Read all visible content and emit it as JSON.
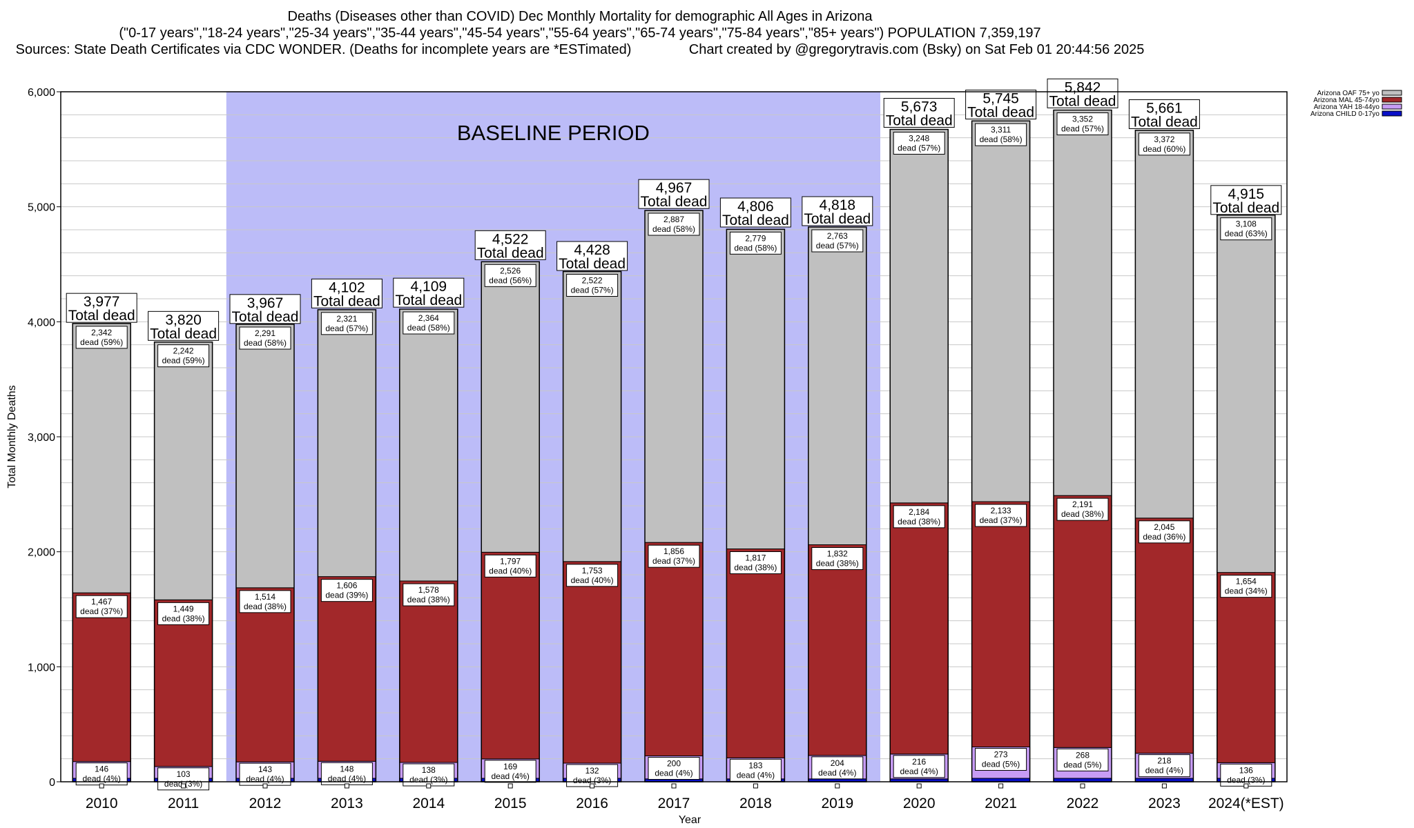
{
  "title": {
    "line1": "Deaths (Diseases other than COVID) Dec Monthly Mortality for demographic All Ages in Arizona",
    "line2": "(\"0-17 years\",\"18-24 years\",\"25-34 years\",\"35-44 years\",\"45-54 years\",\"55-64 years\",\"65-74 years\",\"75-84 years\",\"85+ years\") POPULATION 7,359,197",
    "line3": "Sources: State Death Certificates via CDC WONDER. (Deaths for incomplete years are *ESTimated)               Chart created by @gregorytravis.com (Bsky) on Sat Feb 01 20:44:56 2025"
  },
  "colors": {
    "child": "#0a10c8",
    "yah": "#c79cf5",
    "mal": "#a2282a",
    "oaf": "#c0c0c0",
    "baseline": "#bcbcf8",
    "grid": "#c8c8c8"
  },
  "chart_data": {
    "type": "bar",
    "stacked": true,
    "categories": [
      "2010",
      "2011",
      "2012",
      "2013",
      "2014",
      "2015",
      "2016",
      "2017",
      "2018",
      "2019",
      "2020",
      "2021",
      "2022",
      "2023",
      "2024(*EST)"
    ],
    "series": [
      {
        "name": "Arizona CHILD 0-17yo",
        "key": "child",
        "values": [
          30,
          30,
          30,
          30,
          30,
          30,
          30,
          25,
          25,
          25,
          25,
          30,
          30,
          30,
          30
        ]
      },
      {
        "name": "Arizona YAH 18-44yo",
        "key": "yah",
        "values": [
          146,
          103,
          143,
          148,
          138,
          169,
          132,
          200,
          183,
          204,
          216,
          273,
          268,
          218,
          136
        ],
        "labels": [
          "146",
          "103",
          "143",
          "148",
          "138",
          "169",
          "132",
          "200",
          "183",
          "204",
          "216",
          "273",
          "268",
          "218",
          "136"
        ],
        "pct": [
          "dead (4%)",
          "dead (3%)",
          "dead (4%)",
          "dead (4%)",
          "dead (3%)",
          "dead (4%)",
          "dead (3%)",
          "dead (4%)",
          "dead (4%)",
          "dead (4%)",
          "dead (4%)",
          "dead (5%)",
          "dead (5%)",
          "dead (4%)",
          "dead (3%)"
        ]
      },
      {
        "name": "Arizona MAL 45-74yo",
        "key": "mal",
        "values": [
          1467,
          1449,
          1514,
          1606,
          1578,
          1797,
          1753,
          1856,
          1817,
          1832,
          2184,
          2133,
          2191,
          2045,
          1654
        ],
        "labels": [
          "1,467",
          "1,449",
          "1,514",
          "1,606",
          "1,578",
          "1,797",
          "1,753",
          "1,856",
          "1,817",
          "1,832",
          "2,184",
          "2,133",
          "2,191",
          "2,045",
          "1,654"
        ],
        "pct": [
          "dead (37%)",
          "dead (38%)",
          "dead (38%)",
          "dead (39%)",
          "dead (38%)",
          "dead (40%)",
          "dead (40%)",
          "dead (37%)",
          "dead (38%)",
          "dead (38%)",
          "dead (38%)",
          "dead (37%)",
          "dead (38%)",
          "dead (36%)",
          "dead (34%)"
        ]
      },
      {
        "name": "Arizona OAF 75+ yo",
        "key": "oaf",
        "values": [
          2342,
          2242,
          2291,
          2321,
          2364,
          2526,
          2522,
          2887,
          2779,
          2763,
          3248,
          3311,
          3352,
          3372,
          3108
        ],
        "labels": [
          "2,342",
          "2,242",
          "2,291",
          "2,321",
          "2,364",
          "2,526",
          "2,522",
          "2,887",
          "2,779",
          "2,763",
          "3,248",
          "3,311",
          "3,352",
          "3,372",
          "3,108"
        ],
        "pct": [
          "dead (59%)",
          "dead (59%)",
          "dead (58%)",
          "dead (57%)",
          "dead (58%)",
          "dead (56%)",
          "dead (57%)",
          "dead (58%)",
          "dead (58%)",
          "dead (57%)",
          "dead (57%)",
          "dead (58%)",
          "dead (57%)",
          "dead (60%)",
          "dead (63%)"
        ]
      }
    ],
    "totals": [
      3977,
      3820,
      3967,
      4102,
      4109,
      4522,
      4428,
      4967,
      4806,
      4818,
      5673,
      5745,
      5842,
      5661,
      4915
    ],
    "total_labels": [
      "3,977",
      "3,820",
      "3,967",
      "4,102",
      "4,109",
      "4,522",
      "4,428",
      "4,967",
      "4,806",
      "4,818",
      "5,673",
      "5,745",
      "5,842",
      "5,661",
      "4,915"
    ],
    "total_suffix": "Total dead",
    "baseline_label": "BASELINE PERIOD",
    "baseline_range": [
      "2012",
      "2019"
    ],
    "xlabel": "Year",
    "ylabel": "Total Monthly Deaths",
    "ylim": [
      0,
      6000
    ],
    "yticks": [
      0,
      1000,
      2000,
      3000,
      4000,
      5000,
      6000
    ],
    "ytick_labels": [
      "0",
      "1,000",
      "2,000",
      "3,000",
      "4,000",
      "5,000",
      "6,000"
    ],
    "legend_position": "top-right",
    "legend_order": [
      "oaf",
      "mal",
      "yah",
      "child"
    ],
    "grid": true
  }
}
